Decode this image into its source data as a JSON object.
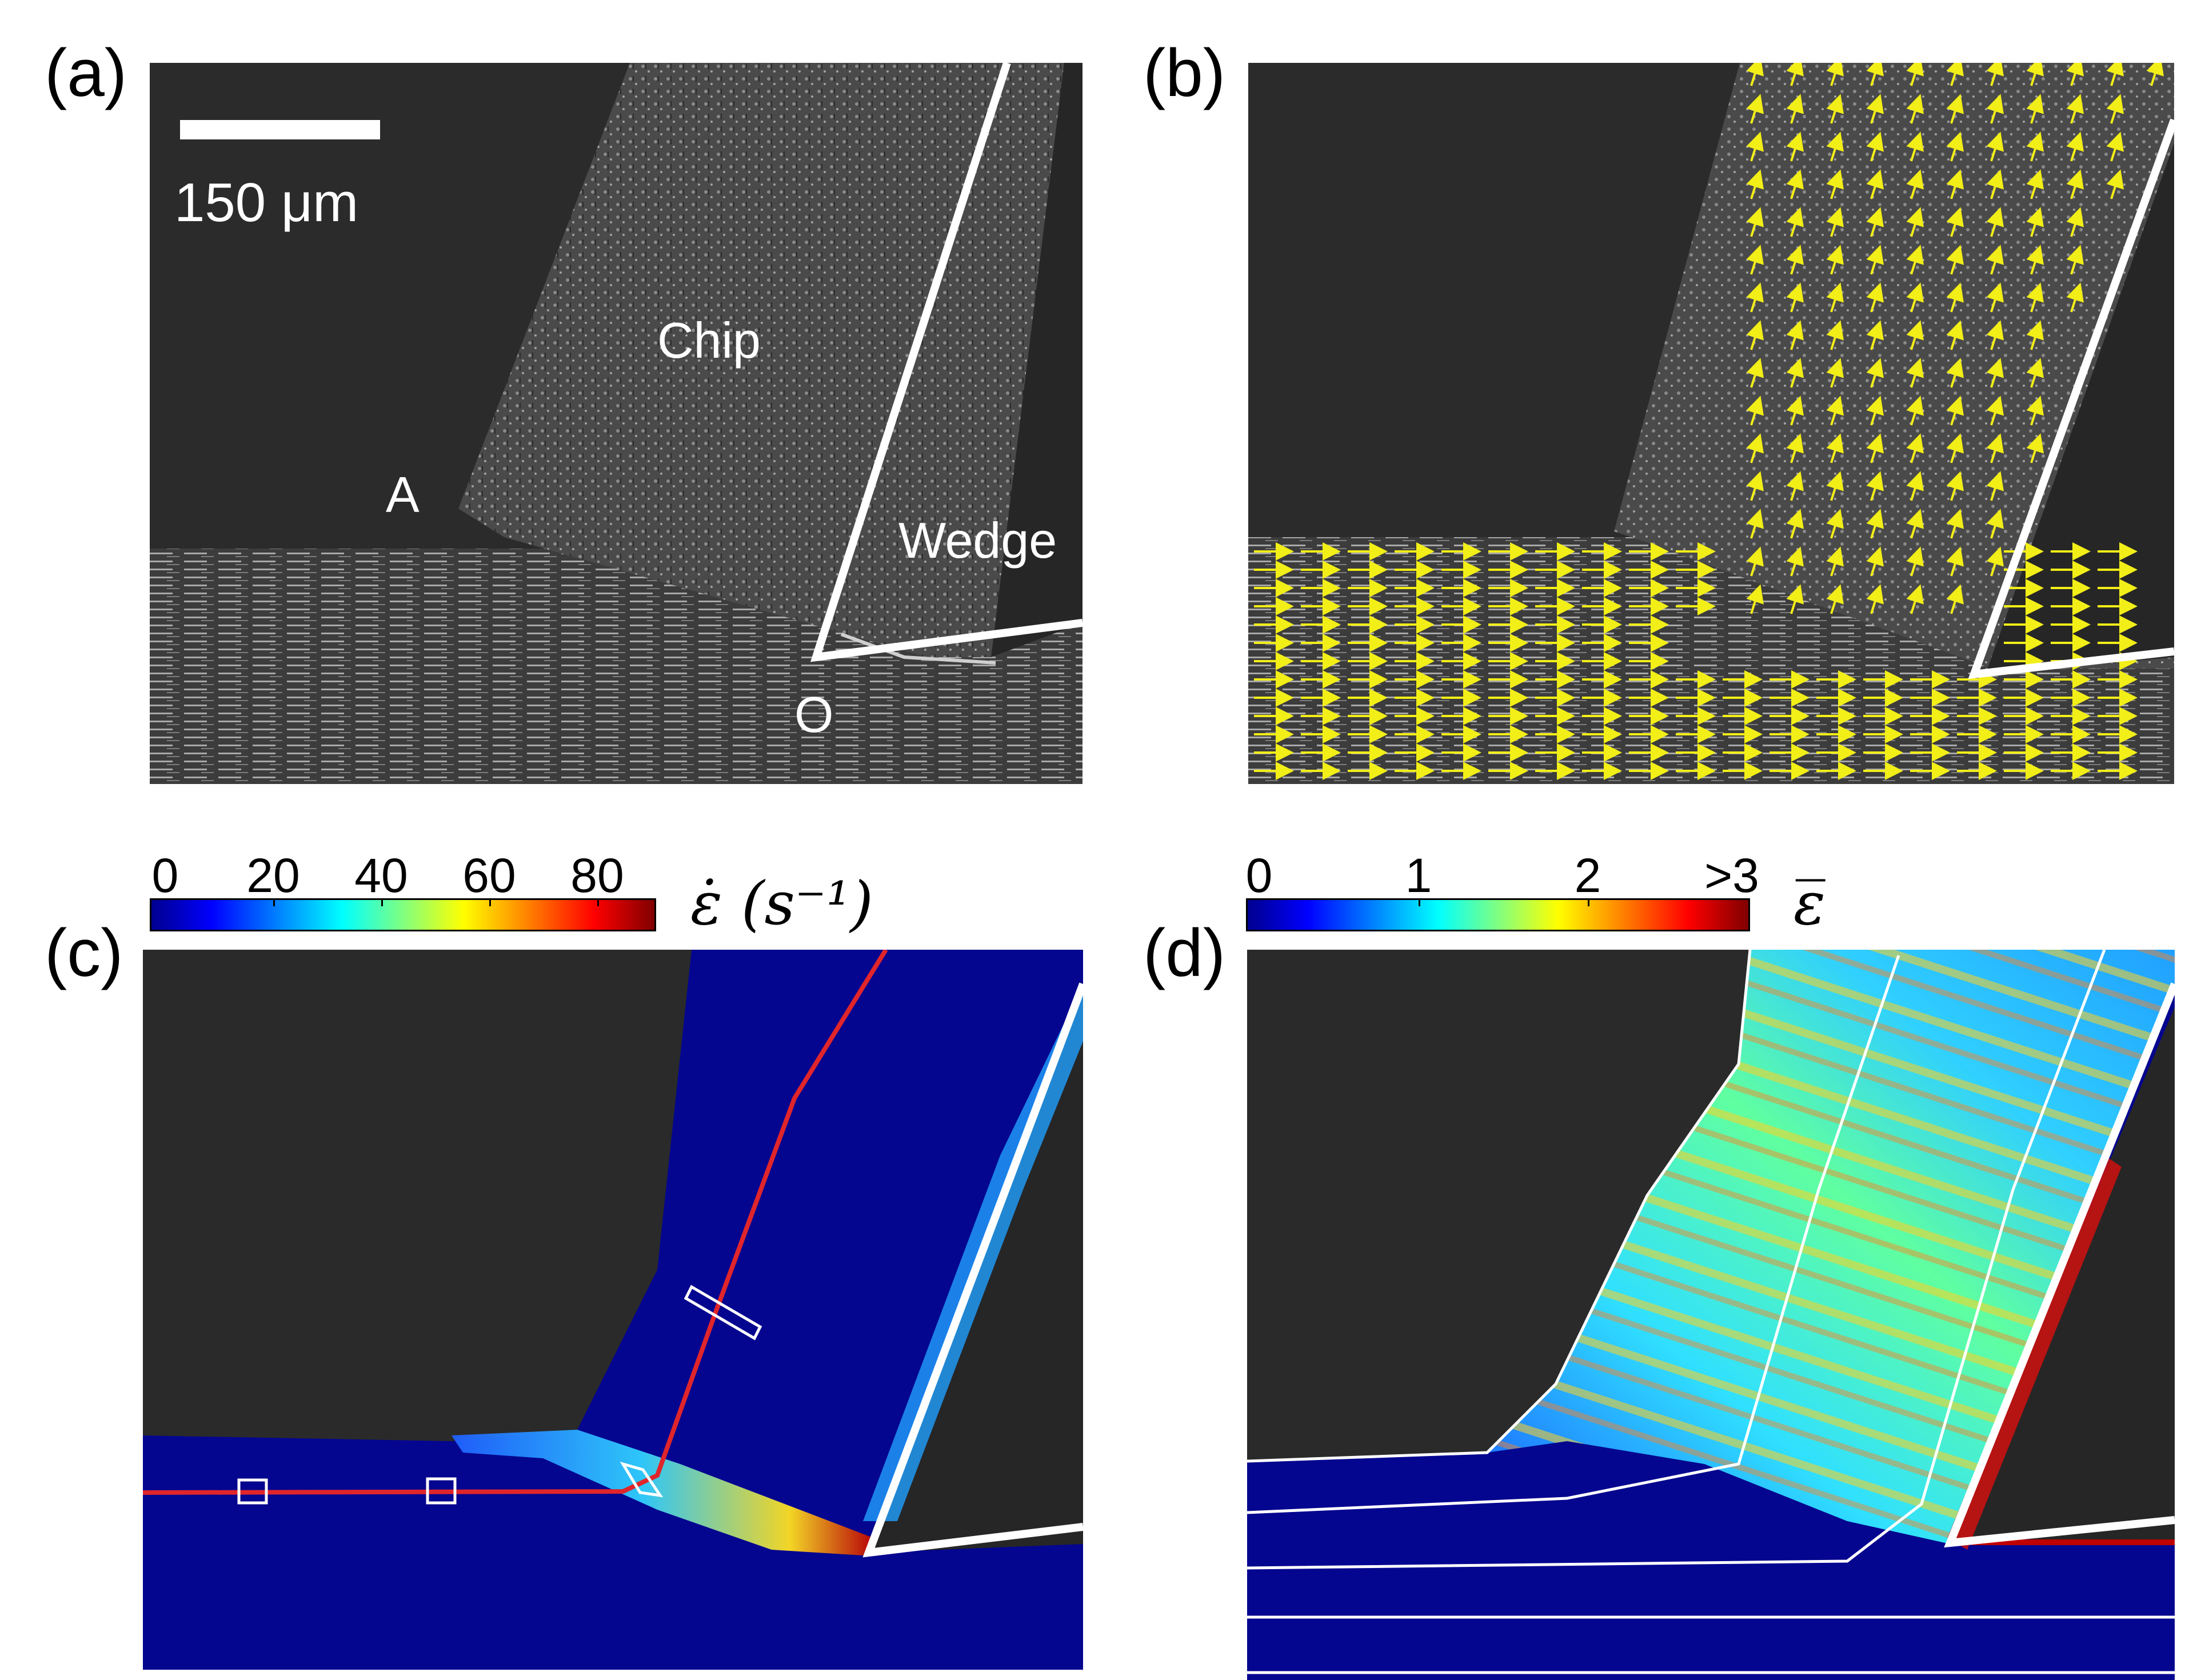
{
  "panels": {
    "a": {
      "label": "(a)",
      "scalebar_text": "150 μm",
      "labels": {
        "chip": "Chip",
        "a_point": "A",
        "wedge": "Wedge",
        "o_point": "O"
      }
    },
    "b": {
      "label": "(b)"
    },
    "c": {
      "label": "(c)",
      "colorbar": {
        "ticks": [
          "0",
          "20",
          "40",
          "60",
          "80"
        ],
        "title": "ε̇ (s⁻¹)",
        "colormap": "jet",
        "range": [
          0,
          90
        ]
      }
    },
    "d": {
      "label": "(d)",
      "colorbar": {
        "ticks": [
          "0",
          "1",
          "2",
          ">3"
        ],
        "title": "ε̅",
        "colormap": "jet",
        "range": [
          0,
          3
        ]
      }
    }
  },
  "colors": {
    "vectors": "#f2ee18",
    "streamline": "#e0252b",
    "background_field": "#05068f",
    "tool_edge": "#ffffff"
  }
}
